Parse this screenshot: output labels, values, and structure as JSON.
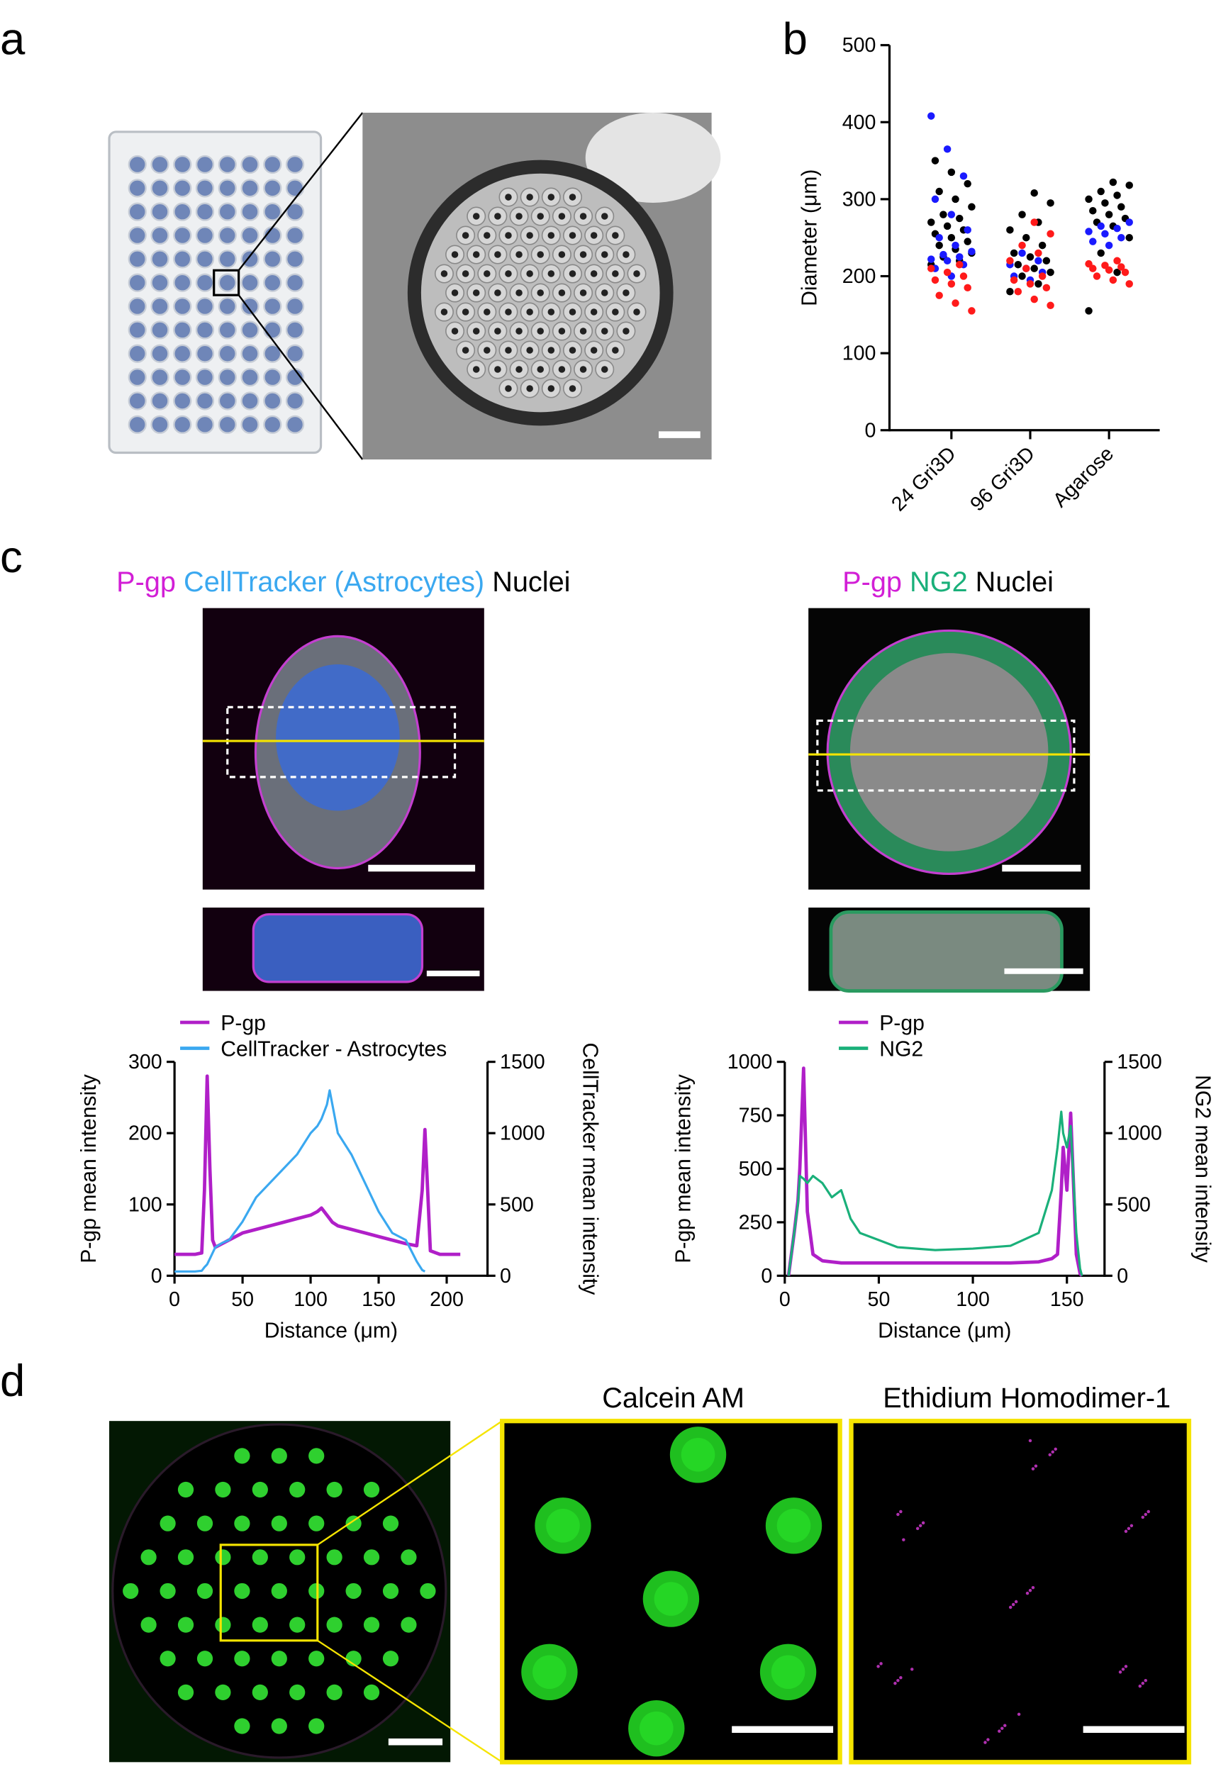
{
  "panel_labels": [
    "a",
    "b",
    "c",
    "d"
  ],
  "image_titles": {
    "c_left": [
      "P-gp",
      "CellTracker (Astrocytes)",
      "Nuclei"
    ],
    "c_right": [
      "P-gp",
      "NG2",
      "Nuclei"
    ],
    "d": [
      "Calcein AM",
      "Ethidium Homodimer-1"
    ]
  },
  "chart_data": [
    {
      "type": "scatter",
      "ylabel": "Diameter (μm)",
      "categories": [
        "24 Gri3D",
        "96 Gri3D",
        "Agarose"
      ],
      "ylim": [
        0,
        500
      ],
      "yticks": [
        0,
        100,
        200,
        300,
        400,
        500
      ],
      "series": [
        {
          "color": "#000000",
          "values": [
            [
              215,
              220,
              225,
              230,
              235,
              240,
              245,
              250,
              255,
              260,
              265,
              270,
              275,
              280,
              290,
              300,
              310,
              320,
              335,
              350
            ],
            [
              180,
              190,
              200,
              205,
              210,
              215,
              220,
              225,
              230,
              240,
              250,
              260,
              270,
              280,
              295,
              308
            ],
            [
              155,
              205,
              230,
              250,
              265,
              270,
              275,
              280,
              285,
              290,
              295,
              300,
              305,
              310,
              318,
              322
            ]
          ]
        },
        {
          "color": "#1a1aff",
          "values": [
            [
              200,
              210,
              215,
              220,
              222,
              225,
              228,
              232,
              240,
              250,
              260,
              280,
              300,
              330,
              365,
              408
            ],
            [
              195,
              200,
              205,
              210,
              215,
              220,
              230
            ],
            [
              240,
              245,
              250,
              255,
              258,
              262,
              265,
              270
            ]
          ]
        },
        {
          "color": "#ff1a1a",
          "values": [
            [
              155,
              165,
              175,
              185,
              190,
              195,
              200,
              205,
              210,
              215
            ],
            [
              162,
              170,
              180,
              185,
              190,
              195,
              200,
              210,
              220,
              230,
              240,
              255,
              270
            ],
            [
              190,
              195,
              200,
              205,
              208,
              210,
              212,
              214,
              216,
              220
            ]
          ]
        }
      ]
    },
    {
      "type": "line",
      "xlabel": "Distance (μm)",
      "ylabel": "P-gp mean intensity",
      "y2label": "CellTracker mean intensity",
      "xlim": [
        0,
        230
      ],
      "xticks": [
        0,
        50,
        100,
        150,
        200
      ],
      "ylim": [
        0,
        300
      ],
      "yticks": [
        0,
        100,
        200,
        300
      ],
      "y2lim": [
        0,
        1500
      ],
      "y2ticks": [
        0,
        500,
        1000,
        1500
      ],
      "x": [
        0,
        5,
        10,
        15,
        20,
        22,
        24,
        26,
        28,
        30,
        35,
        40,
        50,
        60,
        70,
        80,
        90,
        100,
        105,
        108,
        112,
        114,
        116,
        120,
        130,
        140,
        150,
        160,
        170,
        178,
        182,
        184,
        186,
        188,
        195,
        200,
        210
      ],
      "series": [
        {
          "name": "P-gp",
          "color": "#b01fc8",
          "values": [
            30,
            30,
            30,
            30,
            32,
            120,
            280,
            150,
            50,
            40,
            45,
            50,
            60,
            65,
            70,
            75,
            80,
            85,
            90,
            95,
            85,
            80,
            75,
            70,
            65,
            60,
            55,
            50,
            45,
            42,
            120,
            205,
            120,
            35,
            30,
            30,
            30
          ]
        },
        {
          "name": "CellTracker - Astrocytes",
          "color": "#3aa8f0",
          "axis": "y2",
          "values": [
            30,
            30,
            30,
            30,
            35,
            60,
            80,
            120,
            160,
            200,
            230,
            250,
            380,
            550,
            650,
            750,
            850,
            1000,
            1050,
            1100,
            1200,
            1300,
            1200,
            1000,
            850,
            650,
            450,
            300,
            250,
            100,
            40,
            30,
            null,
            null,
            null,
            null,
            null
          ]
        }
      ]
    },
    {
      "type": "line",
      "xlabel": "Distance (μm)",
      "ylabel": "P-gp mean intensity",
      "y2label": "NG2 mean intensity",
      "xlim": [
        0,
        170
      ],
      "xticks": [
        0,
        50,
        100,
        150
      ],
      "ylim": [
        0,
        1000
      ],
      "yticks": [
        0,
        250,
        500,
        750,
        1000
      ],
      "y2lim": [
        0,
        1500
      ],
      "y2ticks": [
        0,
        500,
        1000,
        1500
      ],
      "x": [
        2,
        5,
        7,
        8,
        10,
        12,
        15,
        20,
        25,
        30,
        35,
        40,
        50,
        60,
        80,
        100,
        120,
        135,
        142,
        145,
        147,
        148,
        150,
        152,
        155,
        157,
        158
      ],
      "series": [
        {
          "name": "P-gp",
          "color": "#b01fc8",
          "values": [
            0,
            200,
            350,
            500,
            970,
            300,
            100,
            70,
            65,
            60,
            60,
            60,
            60,
            60,
            60,
            60,
            60,
            65,
            80,
            100,
            400,
            600,
            400,
            760,
            100,
            10,
            0
          ]
        },
        {
          "name": "NG2",
          "color": "#1ab07a",
          "axis": "y2",
          "values": [
            0,
            300,
            500,
            700,
            680,
            650,
            700,
            650,
            550,
            600,
            400,
            300,
            250,
            200,
            180,
            190,
            210,
            300,
            600,
            900,
            1150,
            1000,
            900,
            1050,
            300,
            50,
            0
          ]
        }
      ]
    }
  ]
}
